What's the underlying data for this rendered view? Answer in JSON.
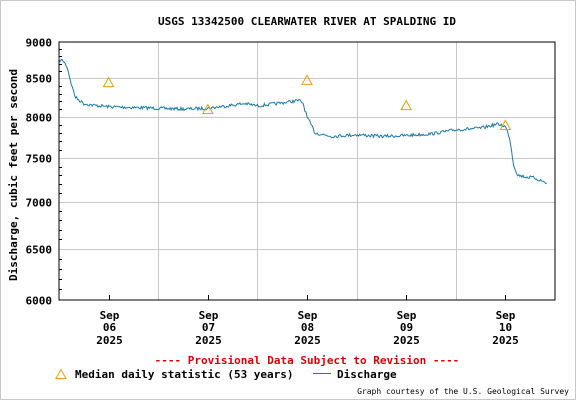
{
  "chart_data": {
    "type": "line",
    "title": "USGS 13342500 CLEARWATER RIVER AT SPALDING ID",
    "ylabel": "Discharge, cubic feet per second",
    "xlabel": "",
    "ylim": [
      6000,
      9000
    ],
    "y_scale": "log",
    "y_ticks": [
      "9000",
      "8500",
      "8000",
      "7500",
      "7000",
      "6500",
      "6000"
    ],
    "xlim": [
      "2025-09-05T12:00",
      "2025-09-10T12:00"
    ],
    "x_ticks": [
      {
        "month": "Sep",
        "day": "06",
        "year": "2025"
      },
      {
        "month": "Sep",
        "day": "07",
        "year": "2025"
      },
      {
        "month": "Sep",
        "day": "08",
        "year": "2025"
      },
      {
        "month": "Sep",
        "day": "09",
        "year": "2025"
      },
      {
        "month": "Sep",
        "day": "10",
        "year": "2025"
      }
    ],
    "grid": true,
    "series": [
      {
        "name": "Median daily statistic (53 years)",
        "marker": "triangle",
        "color": "#e8a000",
        "x": [
          "2025-09-06T00:00",
          "2025-09-07T00:00",
          "2025-09-08T00:00",
          "2025-09-09T00:00",
          "2025-09-10T00:00"
        ],
        "y": [
          8450,
          8100,
          8480,
          8150,
          7900
        ]
      },
      {
        "name": "Discharge",
        "color": "#1a7aaa",
        "x": [
          "2025-09-05T12:00",
          "2025-09-05T13:00",
          "2025-09-05T14:00",
          "2025-09-05T15:00",
          "2025-09-05T16:00",
          "2025-09-05T18:00",
          "2025-09-05T20:00",
          "2025-09-06T00:00",
          "2025-09-06T06:00",
          "2025-09-06T12:00",
          "2025-09-06T18:00",
          "2025-09-07T00:00",
          "2025-09-07T06:00",
          "2025-09-07T09:00",
          "2025-09-07T12:00",
          "2025-09-07T18:00",
          "2025-09-07T22:00",
          "2025-09-07T23:00",
          "2025-09-08T00:00",
          "2025-09-08T02:00",
          "2025-09-08T06:00",
          "2025-09-08T12:00",
          "2025-09-08T18:00",
          "2025-09-09T00:00",
          "2025-09-09T06:00",
          "2025-09-09T12:00",
          "2025-09-09T18:00",
          "2025-09-09T22:00",
          "2025-09-09T23:00",
          "2025-09-10T00:00",
          "2025-09-10T01:00",
          "2025-09-10T02:00",
          "2025-09-10T03:00",
          "2025-09-10T05:00",
          "2025-09-10T07:00",
          "2025-09-10T08:00",
          "2025-09-10T09:00",
          "2025-09-10T10:00"
        ],
        "y": [
          8750,
          8740,
          8650,
          8420,
          8250,
          8170,
          8150,
          8130,
          8120,
          8110,
          8100,
          8110,
          8150,
          8170,
          8140,
          8180,
          8210,
          8180,
          8000,
          7800,
          7760,
          7780,
          7760,
          7770,
          7790,
          7840,
          7860,
          7910,
          7900,
          7880,
          7750,
          7420,
          7300,
          7280,
          7270,
          7250,
          7230,
          7210
        ]
      }
    ],
    "notice": "---- Provisional Data Subject to Revision ----",
    "notice_color": "#dd0000",
    "credit": "Graph courtesy of the U.S. Geological Survey"
  }
}
